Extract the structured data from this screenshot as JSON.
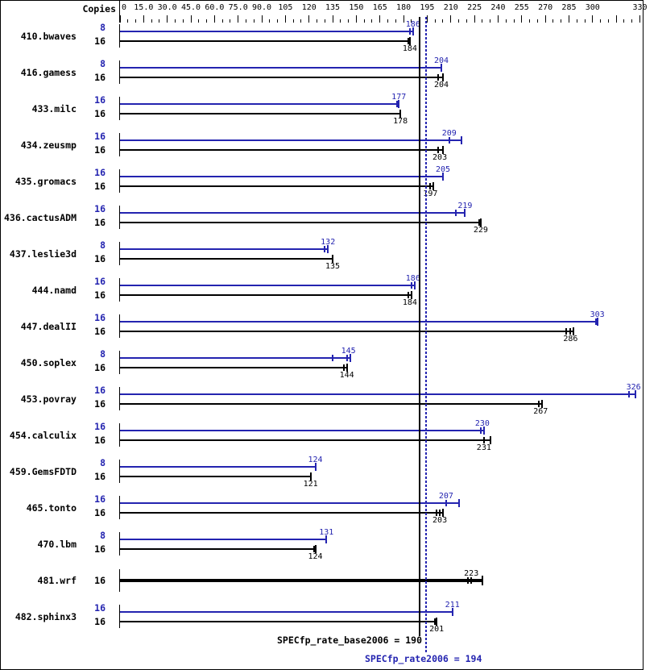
{
  "chart_data": {
    "type": "bar",
    "orientation": "horizontal",
    "title": "",
    "copies_header": "Copies",
    "colors": {
      "peak": "#2424b0",
      "base": "#000000"
    },
    "axis": {
      "min": 0,
      "max": 330,
      "minor_tick_step": 5,
      "major_tick_step": 15,
      "tick_labels": [
        {
          "value": 0,
          "text": "0"
        },
        {
          "value": 15,
          "text": "15.0"
        },
        {
          "value": 30,
          "text": "30.0"
        },
        {
          "value": 45,
          "text": "45.0"
        },
        {
          "value": 60,
          "text": "60.0"
        },
        {
          "value": 75,
          "text": "75.0"
        },
        {
          "value": 90,
          "text": "90.0"
        },
        {
          "value": 105,
          "text": "105"
        },
        {
          "value": 120,
          "text": "120"
        },
        {
          "value": 135,
          "text": "135"
        },
        {
          "value": 150,
          "text": "150"
        },
        {
          "value": 165,
          "text": "165"
        },
        {
          "value": 180,
          "text": "180"
        },
        {
          "value": 195,
          "text": "195"
        },
        {
          "value": 210,
          "text": "210"
        },
        {
          "value": 225,
          "text": "225"
        },
        {
          "value": 240,
          "text": "240"
        },
        {
          "value": 255,
          "text": "255"
        },
        {
          "value": 270,
          "text": "270"
        },
        {
          "value": 285,
          "text": "285"
        },
        {
          "value": 300,
          "text": "300"
        },
        {
          "value": 330,
          "text": "330"
        }
      ]
    },
    "reference_lines": [
      {
        "label": "SPECfp_rate_base2006 = 190",
        "value": 190,
        "style": "solid",
        "color": "#000000"
      },
      {
        "label": "SPECfp_rate2006 = 194",
        "value": 194,
        "style": "dotted",
        "color": "#2424b0"
      }
    ],
    "benchmarks": [
      {
        "name": "410.bwaves",
        "bars": [
          {
            "series": "peak",
            "copies": "8",
            "value": 186,
            "line_end": 186,
            "run_marks": [
              184
            ]
          },
          {
            "series": "base",
            "copies": "16",
            "value": 184,
            "line_end": 184,
            "run_marks": [
              183
            ]
          }
        ]
      },
      {
        "name": "416.gamess",
        "bars": [
          {
            "series": "peak",
            "copies": "8",
            "value": 204,
            "line_end": 204,
            "run_marks": []
          },
          {
            "series": "base",
            "copies": "16",
            "value": 204,
            "line_end": 205,
            "run_marks": [
              202
            ]
          }
        ]
      },
      {
        "name": "433.milc",
        "bars": [
          {
            "series": "peak",
            "copies": "16",
            "value": 177,
            "line_end": 177,
            "run_marks": [
              176
            ]
          },
          {
            "series": "base",
            "copies": "16",
            "value": 178,
            "line_end": 178,
            "run_marks": []
          }
        ]
      },
      {
        "name": "434.zeusmp",
        "bars": [
          {
            "series": "peak",
            "copies": "16",
            "value": 209,
            "line_end": 217,
            "run_marks": [
              209
            ]
          },
          {
            "series": "base",
            "copies": "16",
            "value": 203,
            "line_end": 205,
            "run_marks": [
              202
            ]
          }
        ]
      },
      {
        "name": "435.gromacs",
        "bars": [
          {
            "series": "peak",
            "copies": "16",
            "value": 205,
            "line_end": 205,
            "run_marks": []
          },
          {
            "series": "base",
            "copies": "16",
            "value": 197,
            "line_end": 199,
            "run_marks": [
              197
            ]
          }
        ]
      },
      {
        "name": "436.cactusADM",
        "bars": [
          {
            "series": "peak",
            "copies": "16",
            "value": 219,
            "line_end": 219,
            "run_marks": [
              213
            ]
          },
          {
            "series": "base",
            "copies": "16",
            "value": 229,
            "line_end": 229,
            "run_marks": [
              228
            ]
          }
        ]
      },
      {
        "name": "437.leslie3d",
        "bars": [
          {
            "series": "peak",
            "copies": "8",
            "value": 132,
            "line_end": 132,
            "run_marks": [
              130
            ]
          },
          {
            "series": "base",
            "copies": "16",
            "value": 135,
            "line_end": 135,
            "run_marks": []
          }
        ]
      },
      {
        "name": "444.namd",
        "bars": [
          {
            "series": "peak",
            "copies": "16",
            "value": 186,
            "line_end": 187,
            "run_marks": [
              185
            ]
          },
          {
            "series": "base",
            "copies": "16",
            "value": 184,
            "line_end": 185,
            "run_marks": [
              183
            ]
          }
        ]
      },
      {
        "name": "447.dealII",
        "bars": [
          {
            "series": "peak",
            "copies": "16",
            "value": 303,
            "line_end": 303,
            "run_marks": [
              302
            ]
          },
          {
            "series": "base",
            "copies": "16",
            "value": 286,
            "line_end": 288,
            "run_marks": [
              283,
              286
            ]
          }
        ]
      },
      {
        "name": "450.soplex",
        "bars": [
          {
            "series": "peak",
            "copies": "8",
            "value": 145,
            "line_end": 146,
            "run_marks": [
              135,
              144
            ]
          },
          {
            "series": "base",
            "copies": "16",
            "value": 144,
            "line_end": 144,
            "run_marks": [
              142
            ]
          }
        ]
      },
      {
        "name": "453.povray",
        "bars": [
          {
            "series": "peak",
            "copies": "16",
            "value": 326,
            "line_end": 327,
            "run_marks": [
              323
            ]
          },
          {
            "series": "base",
            "copies": "16",
            "value": 267,
            "line_end": 268,
            "run_marks": [
              266
            ]
          }
        ]
      },
      {
        "name": "454.calculix",
        "bars": [
          {
            "series": "peak",
            "copies": "16",
            "value": 230,
            "line_end": 231,
            "run_marks": [
              229
            ]
          },
          {
            "series": "base",
            "copies": "16",
            "value": 231,
            "line_end": 235,
            "run_marks": [
              231
            ]
          }
        ]
      },
      {
        "name": "459.GemsFDTD",
        "bars": [
          {
            "series": "peak",
            "copies": "8",
            "value": 124,
            "line_end": 124,
            "run_marks": []
          },
          {
            "series": "base",
            "copies": "16",
            "value": 121,
            "line_end": 121,
            "run_marks": []
          }
        ]
      },
      {
        "name": "465.tonto",
        "bars": [
          {
            "series": "peak",
            "copies": "16",
            "value": 207,
            "line_end": 215,
            "run_marks": [
              207
            ]
          },
          {
            "series": "base",
            "copies": "16",
            "value": 203,
            "line_end": 205,
            "run_marks": [
              201,
              203
            ]
          }
        ]
      },
      {
        "name": "470.lbm",
        "bars": [
          {
            "series": "peak",
            "copies": "8",
            "value": 131,
            "line_end": 131,
            "run_marks": []
          },
          {
            "series": "base",
            "copies": "16",
            "value": 124,
            "line_end": 124,
            "run_marks": [
              123
            ]
          }
        ]
      },
      {
        "name": "481.wrf",
        "bars": [
          {
            "series": "base",
            "copies": "16",
            "value": 223,
            "line_end": 230,
            "run_marks": [
              221,
              223
            ],
            "bold": true
          }
        ]
      },
      {
        "name": "482.sphinx3",
        "bars": [
          {
            "series": "peak",
            "copies": "16",
            "value": 211,
            "line_end": 211,
            "run_marks": []
          },
          {
            "series": "base",
            "copies": "16",
            "value": 201,
            "line_end": 201,
            "run_marks": [
              200
            ]
          }
        ]
      }
    ]
  }
}
